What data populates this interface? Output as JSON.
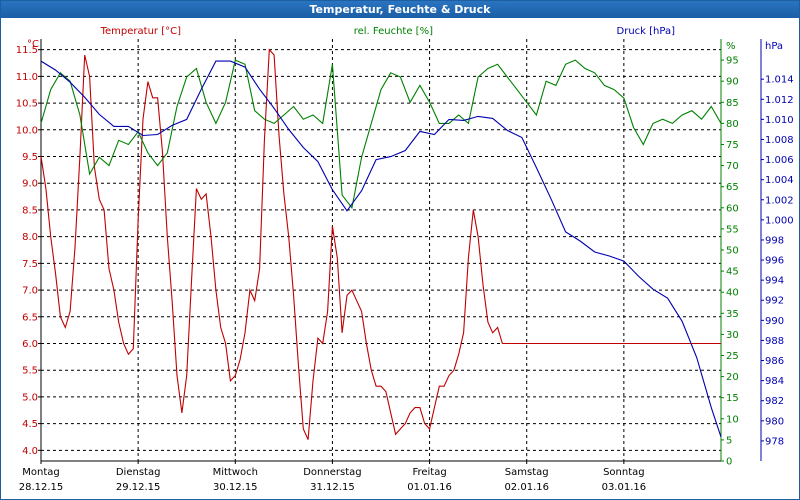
{
  "window": {
    "title": "Temperatur, Feuchte & Druck"
  },
  "chart_data": {
    "type": "line",
    "title": "Temperatur, Feuchte & Druck",
    "grid": true,
    "x_range": [
      0,
      7
    ],
    "x_ticks": [
      {
        "day": "Montag",
        "date": "28.12.15"
      },
      {
        "day": "Dienstag",
        "date": "29.12.15"
      },
      {
        "day": "Mittwoch",
        "date": "30.12.15"
      },
      {
        "day": "Donnerstag",
        "date": "31.12.15"
      },
      {
        "day": "Freitag",
        "date": "01.01.16"
      },
      {
        "day": "Samstag",
        "date": "02.01.16"
      },
      {
        "day": "Sonntag",
        "date": "03.01.16"
      }
    ],
    "axes": {
      "temperature": {
        "label": "Temperatur [°C]",
        "unit": "°C",
        "color": "#c00000",
        "side": "left",
        "range": [
          3.8,
          11.7
        ],
        "ticks": [
          "4.0",
          "4.5",
          "5.0",
          "5.5",
          "6.0",
          "6.5",
          "7.0",
          "7.5",
          "8.0",
          "8.5",
          "9.0",
          "9.5",
          "10.0",
          "10.5",
          "11.0",
          "11.5"
        ]
      },
      "humidity": {
        "label": "rel. Feuchte [%]",
        "unit": "%",
        "color": "#008000",
        "side": "right",
        "range": [
          0,
          100
        ],
        "ticks": [
          "0",
          "5",
          "10",
          "15",
          "20",
          "25",
          "30",
          "35",
          "40",
          "45",
          "50",
          "55",
          "60",
          "65",
          "70",
          "75",
          "80",
          "85",
          "90",
          "95"
        ]
      },
      "pressure": {
        "label": "Druck [hPa]",
        "unit": "hPa",
        "color": "#0000b0",
        "side": "right",
        "range": [
          976,
          1018
        ],
        "ticks": [
          "978",
          "980",
          "982",
          "984",
          "986",
          "988",
          "990",
          "992",
          "994",
          "996",
          "998",
          "1.000",
          "1.002",
          "1.004",
          "1.006",
          "1.008",
          "1.010",
          "1.012",
          "1.014"
        ]
      }
    },
    "series": [
      {
        "name": "Temperatur [°C]",
        "axis": "temperature",
        "color": "#c00000",
        "x": [
          0,
          0.05,
          0.1,
          0.15,
          0.2,
          0.25,
          0.3,
          0.35,
          0.4,
          0.45,
          0.5,
          0.55,
          0.6,
          0.65,
          0.7,
          0.75,
          0.8,
          0.85,
          0.9,
          0.95,
          1.0,
          1.05,
          1.1,
          1.15,
          1.2,
          1.25,
          1.3,
          1.35,
          1.4,
          1.45,
          1.5,
          1.55,
          1.6,
          1.65,
          1.7,
          1.75,
          1.8,
          1.85,
          1.9,
          1.95,
          2.0,
          2.05,
          2.1,
          2.15,
          2.2,
          2.25,
          2.3,
          2.35,
          2.4,
          2.45,
          2.5,
          2.55,
          2.6,
          2.65,
          2.7,
          2.75,
          2.8,
          2.85,
          2.9,
          2.95,
          3.0,
          3.05,
          3.1,
          3.15,
          3.2,
          3.25,
          3.3,
          3.35,
          3.4,
          3.45,
          3.5,
          3.55,
          3.6,
          3.65,
          3.7,
          3.75,
          3.8,
          3.85,
          3.9,
          3.95,
          4.0,
          4.05,
          4.1,
          4.15,
          4.2,
          4.25,
          4.3,
          4.35,
          4.4,
          4.45,
          4.5,
          4.55,
          4.6,
          4.65,
          4.7,
          4.75,
          4.8,
          4.85,
          4.9,
          4.95,
          5.0,
          5.05,
          5.1,
          5.15,
          5.2,
          5.25,
          5.3,
          5.35,
          5.4,
          5.45,
          5.5,
          5.55,
          5.6,
          5.65,
          5.7,
          5.75,
          5.8,
          5.85,
          5.9,
          5.95,
          6.0,
          6.05,
          6.1,
          6.15,
          6.2,
          6.25,
          6.3,
          6.35,
          6.4,
          6.45,
          6.5,
          6.55,
          6.6,
          6.65,
          6.7,
          6.75,
          6.8,
          6.85,
          6.9,
          6.95,
          7.0
        ],
        "values": [
          9.5,
          8.9,
          8.0,
          7.3,
          6.5,
          6.3,
          6.6,
          7.8,
          9.5,
          11.4,
          11.0,
          9.3,
          8.7,
          8.5,
          7.4,
          7.0,
          6.4,
          6.0,
          5.8,
          5.9,
          8.3,
          10.2,
          10.9,
          10.6,
          10.6,
          9.6,
          8.0,
          6.8,
          5.4,
          4.7,
          5.4,
          7.2,
          8.9,
          8.7,
          8.8,
          8.0,
          7.0,
          6.3,
          6.0,
          5.3,
          5.4,
          5.7,
          6.2,
          7.0,
          6.8,
          7.4,
          9.8,
          11.5,
          11.4,
          9.9,
          8.8,
          8.0,
          6.9,
          5.6,
          4.4,
          4.2,
          5.3,
          6.1,
          6.0,
          6.6,
          8.2,
          7.6,
          6.2,
          6.9,
          7.0,
          6.8,
          6.6,
          6.0,
          5.5,
          5.2,
          5.2,
          5.1,
          4.7,
          4.3,
          4.4,
          4.5,
          4.7,
          4.8,
          4.8,
          4.5,
          4.4,
          4.8,
          5.2,
          5.2,
          5.4,
          5.5,
          5.8,
          6.2,
          7.6,
          8.5,
          8.0,
          7.1,
          6.4,
          6.2,
          6.3,
          6.0,
          6.0,
          6.0,
          6.0,
          6.0,
          6.0,
          6.0,
          6.0,
          6.0,
          6.0,
          6.0,
          6.0,
          6.0,
          6.0,
          6.0,
          6.0,
          6.0,
          6.0,
          6.0,
          6.0,
          6.0,
          6.0,
          6.0,
          6.0,
          6.0,
          6.0,
          6.0,
          6.0,
          6.0,
          6.0,
          6.0,
          6.0,
          6.0,
          6.0,
          6.0,
          6.0,
          6.0,
          6.0,
          6.0,
          6.0,
          6.0,
          6.0,
          6.0,
          6.0,
          6.0,
          6.0
        ]
      },
      {
        "name": "rel. Feuchte [%]",
        "axis": "humidity",
        "color": "#008000",
        "x": [
          0,
          0.1,
          0.2,
          0.3,
          0.4,
          0.5,
          0.6,
          0.7,
          0.8,
          0.9,
          1.0,
          1.1,
          1.2,
          1.3,
          1.4,
          1.5,
          1.6,
          1.7,
          1.8,
          1.9,
          2.0,
          2.1,
          2.2,
          2.3,
          2.4,
          2.5,
          2.6,
          2.7,
          2.8,
          2.9,
          3.0,
          3.1,
          3.2,
          3.3,
          3.4,
          3.5,
          3.6,
          3.7,
          3.8,
          3.9,
          4.0,
          4.1,
          4.2,
          4.3,
          4.4,
          4.5,
          4.6,
          4.7,
          4.8,
          4.9,
          5.0,
          5.1,
          5.2,
          5.3,
          5.4,
          5.5,
          5.6,
          5.7,
          5.8,
          5.9,
          6.0,
          6.1,
          6.2,
          6.3,
          6.4,
          6.5,
          6.6,
          6.7,
          6.8,
          6.9,
          7.0
        ],
        "values": [
          80,
          88,
          92,
          90,
          82,
          68,
          72,
          70,
          76,
          75,
          78,
          73,
          70,
          73,
          84,
          91,
          93,
          85,
          80,
          85,
          95,
          94,
          83,
          81,
          80,
          82,
          84,
          81,
          82,
          80,
          94,
          63,
          60,
          72,
          80,
          88,
          92,
          91,
          85,
          89,
          85,
          80,
          80,
          82,
          80,
          91,
          93,
          94,
          91,
          88,
          85,
          82,
          90,
          89,
          94,
          95,
          93,
          92,
          89,
          88,
          86,
          79,
          75,
          80,
          81,
          80,
          82,
          83,
          81,
          84,
          80
        ]
      },
      {
        "name": "Druck [hPa]",
        "axis": "pressure",
        "color": "#0000b0",
        "x": [
          0,
          0.15,
          0.3,
          0.45,
          0.6,
          0.75,
          0.9,
          1.05,
          1.2,
          1.35,
          1.5,
          1.65,
          1.8,
          1.95,
          2.1,
          2.25,
          2.4,
          2.55,
          2.7,
          2.85,
          3.0,
          3.15,
          3.3,
          3.45,
          3.6,
          3.75,
          3.9,
          4.05,
          4.2,
          4.35,
          4.5,
          4.65,
          4.8,
          4.95,
          5.1,
          5.25,
          5.4,
          5.55,
          5.7,
          5.85,
          6.0,
          6.15,
          6.3,
          6.45,
          6.6,
          6.75,
          6.9,
          7.0
        ],
        "values": [
          1015.8,
          1014.9,
          1013.7,
          1012.2,
          1010.5,
          1009.3,
          1009.3,
          1008.4,
          1008.5,
          1009.4,
          1010.0,
          1013.0,
          1015.8,
          1015.8,
          1015.2,
          1013.0,
          1011.1,
          1009.0,
          1007.2,
          1005.8,
          1003.0,
          1000.9,
          1002.9,
          1006.0,
          1006.3,
          1006.9,
          1008.8,
          1008.5,
          1010.0,
          1009.9,
          1010.3,
          1010.1,
          1008.9,
          1008.2,
          1005.2,
          1002.1,
          998.8,
          997.9,
          996.8,
          996.4,
          995.9,
          994.4,
          993.1,
          992.2,
          989.9,
          986.3,
          981.3,
          978.4
        ]
      }
    ]
  }
}
